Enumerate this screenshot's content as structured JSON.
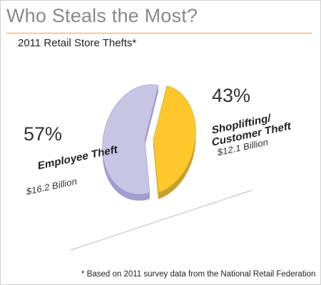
{
  "title": "Who Steals the Most?",
  "subtitle": "2011 Retail Store Thefts*",
  "footnote": "* Based on 2011 survey data from the National Retail Federation",
  "colors": {
    "employee": "#c8c4e4",
    "employee_side": "#a39ccf",
    "shoplifting": "#ffc72c",
    "shoplifting_side": "#c7a22b",
    "accent_rule": "#e8a070"
  },
  "chart_data": {
    "type": "pie",
    "title": "Who Steals the Most?",
    "subtitle": "2011 Retail Store Thefts*",
    "slices": [
      {
        "label": "Shoplifting/ Customer Theft",
        "percent_label": "43%",
        "value": 43,
        "amount": "$12.1 Billion",
        "exploded": false
      },
      {
        "label": "Employee Theft",
        "percent_label": "57%",
        "value": 57,
        "amount": "$16.2 Billion",
        "exploded": true
      }
    ],
    "legend": "none",
    "annotation": "* Based on 2011 survey data from the National Retail Federation"
  }
}
